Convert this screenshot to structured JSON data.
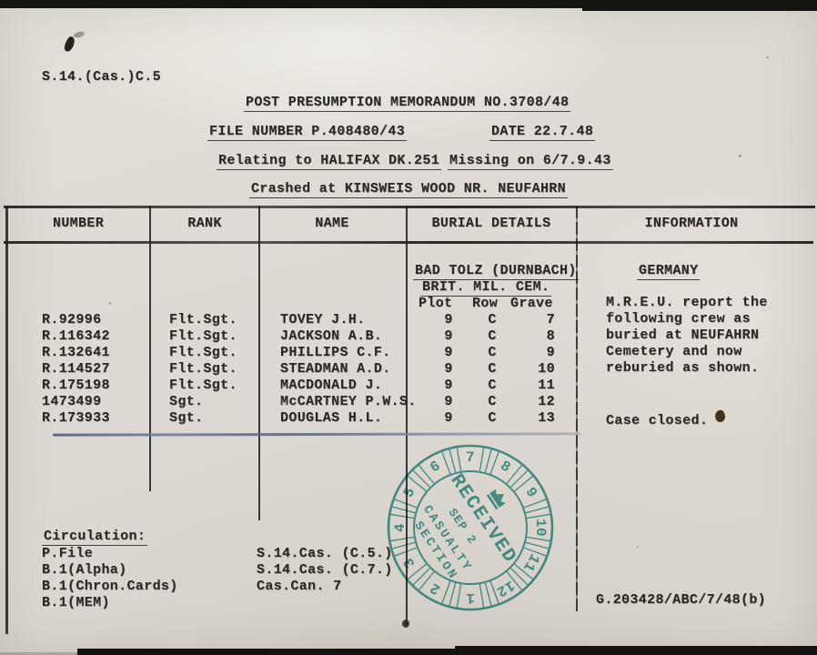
{
  "header": {
    "ref": "S.14.(Cas.)C.5",
    "title": "POST PRESUMPTION MEMORANDUM NO.3708/48",
    "file_number": "FILE NUMBER P.408480/43",
    "date": "DATE 22.7.48",
    "relating": "Relating to HALIFAX DK.251",
    "missing": "Missing on 6/7.9.43",
    "crashed": "Crashed at KINSWEIS WOOD NR. NEUFAHRN"
  },
  "table": {
    "columns": [
      "NUMBER",
      "RANK",
      "NAME",
      "BURIAL DETAILS",
      "INFORMATION"
    ],
    "cemetery_line1": "BAD TOLZ (DURNBACH)",
    "cemetery_line2": "BRIT. MIL. CEM.",
    "grave_columns": [
      "Plot",
      "Row",
      "Grave"
    ],
    "country": "GERMANY",
    "rows": [
      {
        "number": "R.92996",
        "rank": "Flt.Sgt.",
        "name": "TOVEY J.H.",
        "plot": "9",
        "row": "C",
        "grave": "7"
      },
      {
        "number": "R.116342",
        "rank": "Flt.Sgt.",
        "name": "JACKSON A.B.",
        "plot": "9",
        "row": "C",
        "grave": "8"
      },
      {
        "number": "R.132641",
        "rank": "Flt.Sgt.",
        "name": "PHILLIPS C.F.",
        "plot": "9",
        "row": "C",
        "grave": "9"
      },
      {
        "number": "R.114527",
        "rank": "Flt.Sgt.",
        "name": "STEADMAN A.D.",
        "plot": "9",
        "row": "C",
        "grave": "10"
      },
      {
        "number": "R.175198",
        "rank": "Flt.Sgt.",
        "name": "MACDONALD J.",
        "plot": "9",
        "row": "C",
        "grave": "11"
      },
      {
        "number": "1473499",
        "rank": "Sgt.",
        "name": "McCARTNEY P.W.S.",
        "plot": "9",
        "row": "C",
        "grave": "12"
      },
      {
        "number": "R.173933",
        "rank": "Sgt.",
        "name": "DOUGLAS H.L.",
        "plot": "9",
        "row": "C",
        "grave": "13"
      }
    ],
    "information_lines": [
      "M.R.E.U. report the",
      "following crew as",
      "buried at NEUFAHRN",
      "Cemetery and now",
      "reburied as shown."
    ],
    "case_note": "Case closed."
  },
  "circulation": {
    "heading": "Circulation:",
    "left_items": [
      "P.File",
      "B.1(Alpha)",
      "B.1(Chron.Cards)",
      "B.1(MEM)"
    ],
    "right_items": [
      "S.14.Cas. (C.5.)",
      "S.14.Cas. (C.7.)",
      "Cas.Can. 7"
    ]
  },
  "stamp": {
    "received": "RECEIVED",
    "date_line": "SEP 2",
    "section_line1": "CASUALTY",
    "section_line2": "SECTION",
    "ring": [
      "7",
      "8",
      "9",
      "10",
      "11",
      "12",
      "1",
      "2",
      "3",
      "4",
      "5",
      "6"
    ],
    "color": "#2a938f"
  },
  "footer": {
    "reference": "G.203428/ABC/7/48(b)"
  }
}
